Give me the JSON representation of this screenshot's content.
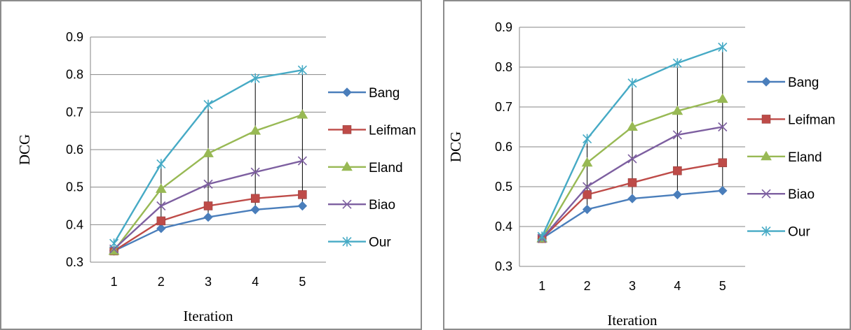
{
  "chart_data": [
    {
      "type": "line",
      "title": "",
      "xlabel": "Iteration",
      "ylabel": "DCG",
      "x": [
        1,
        2,
        3,
        4,
        5
      ],
      "ylim": [
        0.3,
        0.9
      ],
      "yticks": [
        "0.3",
        "0.4",
        "0.5",
        "0.6",
        "0.7",
        "0.8",
        "0.9"
      ],
      "xticks": [
        "1",
        "2",
        "3",
        "4",
        "5"
      ],
      "grid": "horizontal",
      "drop_lines": true,
      "legend": "right",
      "series": [
        {
          "name": "Bang",
          "values": [
            0.33,
            0.39,
            0.42,
            0.44,
            0.45
          ],
          "color": "#4a7ebb",
          "marker": "diamond"
        },
        {
          "name": "Leifman",
          "values": [
            0.33,
            0.41,
            0.45,
            0.47,
            0.48
          ],
          "color": "#be4b48",
          "marker": "square"
        },
        {
          "name": "Eland",
          "values": [
            0.33,
            0.495,
            0.59,
            0.65,
            0.693
          ],
          "color": "#98b954",
          "marker": "triangle"
        },
        {
          "name": "Biao",
          "values": [
            0.335,
            0.45,
            0.508,
            0.54,
            0.57
          ],
          "color": "#7d5fa0",
          "marker": "x"
        },
        {
          "name": "Our",
          "values": [
            0.35,
            0.562,
            0.72,
            0.79,
            0.812
          ],
          "color": "#46aac5",
          "marker": "star"
        }
      ]
    },
    {
      "type": "line",
      "title": "",
      "xlabel": "Iteration",
      "ylabel": "DCG",
      "x": [
        1,
        2,
        3,
        4,
        5
      ],
      "ylim": [
        0.3,
        0.9
      ],
      "yticks": [
        "0.3",
        "0.4",
        "0.5",
        "0.6",
        "0.7",
        "0.8",
        "0.9"
      ],
      "xticks": [
        "1",
        "2",
        "3",
        "4",
        "5"
      ],
      "grid": "horizontal",
      "drop_lines": true,
      "legend": "right",
      "series": [
        {
          "name": "Bang",
          "values": [
            0.37,
            0.443,
            0.47,
            0.48,
            0.49
          ],
          "color": "#4a7ebb",
          "marker": "diamond"
        },
        {
          "name": "Leifman",
          "values": [
            0.37,
            0.48,
            0.51,
            0.54,
            0.56
          ],
          "color": "#be4b48",
          "marker": "square"
        },
        {
          "name": "Eland",
          "values": [
            0.37,
            0.56,
            0.65,
            0.69,
            0.72
          ],
          "color": "#98b954",
          "marker": "triangle"
        },
        {
          "name": "Biao",
          "values": [
            0.37,
            0.5,
            0.57,
            0.63,
            0.65
          ],
          "color": "#7d5fa0",
          "marker": "x"
        },
        {
          "name": "Our",
          "values": [
            0.375,
            0.62,
            0.76,
            0.81,
            0.85
          ],
          "color": "#46aac5",
          "marker": "star"
        }
      ]
    }
  ]
}
